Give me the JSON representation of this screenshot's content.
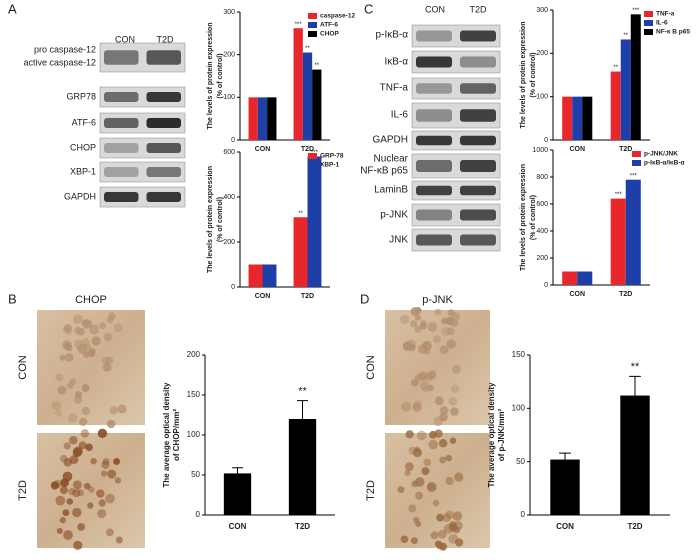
{
  "panel_labels": [
    "A",
    "B",
    "C",
    "D"
  ],
  "blots": [
    {
      "columns": [
        "CON",
        "T2D"
      ],
      "rows": [
        "pro caspase-12",
        "active caspase-12",
        "GRP78",
        "ATF-6",
        "CHOP",
        "XBP-1",
        "GAPDH"
      ]
    },
    {
      "columns": [
        "CON",
        "T2D"
      ],
      "rows": [
        "p-IκB-α",
        "IκB-α",
        "TNF-a",
        "IL-6",
        "GAPDH",
        "Nuclear",
        "NF-κB p65",
        "LaminB",
        "p-JNK",
        "JNK"
      ]
    }
  ],
  "micrographs": [
    {
      "title": "CHOP",
      "rows": [
        "CON",
        "T2D"
      ]
    },
    {
      "title": "p-JNK",
      "rows": [
        "CON",
        "T2D"
      ]
    }
  ],
  "chart_data": [
    {
      "type": "bar",
      "categories": [
        "CON",
        "T2D"
      ],
      "ylabel": [
        "The levels of protein expression",
        "(% of control)"
      ],
      "ylim": [
        0,
        300
      ],
      "yticks": [
        0,
        100,
        200,
        300
      ],
      "series": [
        {
          "name": "caspase-12",
          "color": "#e8262b",
          "values": [
            100,
            262
          ],
          "significance": [
            null,
            "***"
          ]
        },
        {
          "name": "ATF-6",
          "color": "#1f3fa8",
          "values": [
            100,
            205
          ],
          "significance": [
            null,
            "**"
          ]
        },
        {
          "name": "CHOP",
          "color": "#000000",
          "values": [
            100,
            165
          ],
          "significance": [
            null,
            "**"
          ]
        }
      ]
    },
    {
      "type": "bar",
      "categories": [
        "CON",
        "T2D"
      ],
      "ylabel": [
        "The levels of protein expression",
        "(% of control)"
      ],
      "ylim": [
        0,
        600
      ],
      "yticks": [
        0,
        200,
        400,
        600
      ],
      "series": [
        {
          "name": "GRP-78",
          "color": "#e8262b",
          "values": [
            100,
            310
          ],
          "significance": [
            null,
            "**"
          ]
        },
        {
          "name": "XBP-1",
          "color": "#1f3fa8",
          "values": [
            100,
            580
          ],
          "significance": [
            null,
            "***"
          ]
        }
      ]
    },
    {
      "type": "bar",
      "categories": [
        "CON",
        "T2D"
      ],
      "ylabel": [
        "The levels of protein expression",
        "(% of control)"
      ],
      "ylim": [
        0,
        300
      ],
      "yticks": [
        0,
        100,
        200,
        300
      ],
      "series": [
        {
          "name": "TNF-a",
          "color": "#e8262b",
          "values": [
            100,
            158
          ],
          "significance": [
            null,
            "**"
          ]
        },
        {
          "name": "IL-6",
          "color": "#1f3fa8",
          "values": [
            100,
            232
          ],
          "significance": [
            null,
            "**"
          ]
        },
        {
          "name": "NF-κ B p65",
          "color": "#000000",
          "values": [
            100,
            290
          ],
          "significance": [
            null,
            "***"
          ]
        }
      ]
    },
    {
      "type": "bar",
      "categories": [
        "CON",
        "T2D"
      ],
      "ylabel": [
        "The levels of protein expression",
        "(% of control)"
      ],
      "ylim": [
        0,
        1000
      ],
      "yticks": [
        0,
        200,
        400,
        600,
        800,
        1000
      ],
      "series": [
        {
          "name": "p-JNK/JNK",
          "color": "#e8262b",
          "values": [
            100,
            640
          ],
          "significance": [
            null,
            "***"
          ]
        },
        {
          "name": "p-IκB-α/IκB-α",
          "color": "#1f3fa8",
          "values": [
            100,
            780
          ],
          "significance": [
            null,
            "***"
          ]
        }
      ]
    },
    {
      "type": "bar",
      "categories": [
        "CON",
        "T2D"
      ],
      "ylabel": [
        "The average optical density",
        "of CHOP/mm²"
      ],
      "ylim": [
        0,
        200
      ],
      "yticks": [
        0,
        50,
        100,
        150,
        200
      ],
      "color": "#000000",
      "values": [
        52,
        120
      ],
      "errors": [
        7,
        23
      ],
      "significance": [
        null,
        "**"
      ]
    },
    {
      "type": "bar",
      "categories": [
        "CON",
        "T2D"
      ],
      "ylabel": [
        "The average optical density",
        "of p-JNK/mm²"
      ],
      "ylim": [
        0,
        150
      ],
      "yticks": [
        0,
        50,
        100,
        150
      ],
      "color": "#000000",
      "values": [
        52,
        112
      ],
      "errors": [
        6,
        18
      ],
      "significance": [
        null,
        "**"
      ]
    }
  ]
}
